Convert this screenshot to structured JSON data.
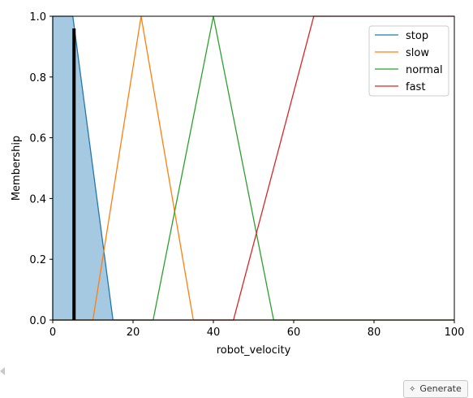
{
  "chart_data": {
    "type": "line",
    "xlabel": "robot_velocity",
    "ylabel": "Membership",
    "xlim": [
      0,
      100
    ],
    "ylim": [
      0,
      1.0
    ],
    "xticks": [
      0,
      20,
      40,
      60,
      80,
      100
    ],
    "yticks": [
      0.0,
      0.2,
      0.4,
      0.6,
      0.8,
      1.0
    ],
    "xtick_labels": [
      "0",
      "20",
      "40",
      "60",
      "80",
      "100"
    ],
    "ytick_labels": [
      "0.0",
      "0.2",
      "0.4",
      "0.6",
      "0.8",
      "1.0"
    ],
    "legend_position": "upper-right",
    "grid": false,
    "series": [
      {
        "name": "stop",
        "color": "#1f77b4",
        "x": [
          0,
          0,
          5,
          15,
          100
        ],
        "y": [
          0,
          1,
          1,
          0,
          0
        ]
      },
      {
        "name": "slow",
        "color": "#ff7f0e",
        "x": [
          0,
          10,
          22,
          35,
          100
        ],
        "y": [
          0,
          0,
          1,
          0,
          0
        ]
      },
      {
        "name": "normal",
        "color": "#2ca02c",
        "x": [
          0,
          25,
          40,
          55,
          100
        ],
        "y": [
          0,
          0,
          1,
          0,
          0
        ]
      },
      {
        "name": "fast",
        "color": "#d62728",
        "x": [
          0,
          45,
          65,
          100
        ],
        "y": [
          0,
          0,
          1,
          1
        ]
      }
    ],
    "activation": {
      "shaded_series": "stop",
      "fill_color": "#1f77b4",
      "fill_opacity": 0.4,
      "input_value": 5.3,
      "membership": 0.96
    }
  },
  "ui": {
    "generate_label": "Generate",
    "generate_icon": "sparkle-icon",
    "scroll_icon": "left-arrow-icon"
  }
}
